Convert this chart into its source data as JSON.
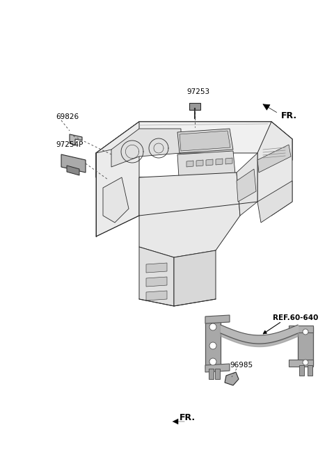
{
  "bg_color": "#ffffff",
  "line_color": "#2a2a2a",
  "gray_fill": "#b8b8b8",
  "gray_mid": "#999999",
  "gray_dark": "#666666",
  "figsize": [
    4.8,
    6.57
  ],
  "dpi": 100,
  "label_69826": "69826",
  "label_97254P": "97254P",
  "label_97253": "97253",
  "label_96985": "96985",
  "label_ref": "REF.60-640",
  "label_fr": "FR.",
  "fontsize_label": 7.5,
  "fontsize_fr": 9
}
